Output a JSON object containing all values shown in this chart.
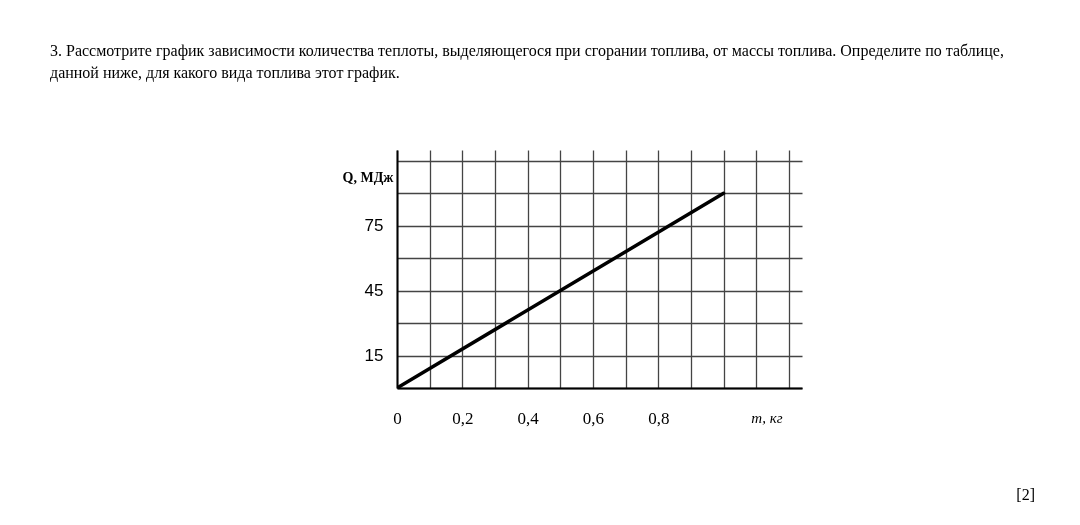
{
  "chart_data": {
    "type": "line",
    "title": "3. Рассмотрите график зависимости количества теплоты, выделяющегося при сгорании топлива, от массы топлива. Определите по таблице, данной ниже, для какого вида топлива этот график.",
    "annotations": [
      "[2]"
    ],
    "xlabel": "m, кг",
    "ylabel": "Q, МДж",
    "series": [
      {
        "color": "#000000",
        "x": [
          0,
          1
        ],
        "values": [
          0,
          90
        ]
      }
    ],
    "xlim": [
      0,
      1.24
    ],
    "ylim": [
      0,
      110
    ],
    "xticks": [
      0,
      {
        "value": 0.1,
        "label": null
      },
      {
        "value": 0.2,
        "label": "0,2"
      },
      {
        "value": 0.3,
        "label": null
      },
      {
        "value": 0.4,
        "label": "0,4"
      },
      {
        "value": 0.5,
        "label": null
      },
      {
        "value": 0.6,
        "label": "0,6"
      },
      {
        "value": 0.7,
        "label": null
      },
      {
        "value": 0.8,
        "label": "0,8"
      },
      {
        "value": 0.9,
        "label": null
      },
      {
        "value": 1.0,
        "label": null
      },
      {
        "value": 1.1,
        "label": null
      },
      {
        "value": 1.2,
        "label": null
      }
    ],
    "yticks": [
      {
        "value": 0,
        "label": null
      },
      15,
      {
        "value": 30,
        "label": null
      },
      45,
      {
        "value": 60,
        "label": null
      },
      75,
      {
        "value": 90,
        "label": null
      },
      {
        "value": 105,
        "label": null
      }
    ],
    "grid": true,
    "marker": "none",
    "line_style": "solid"
  }
}
